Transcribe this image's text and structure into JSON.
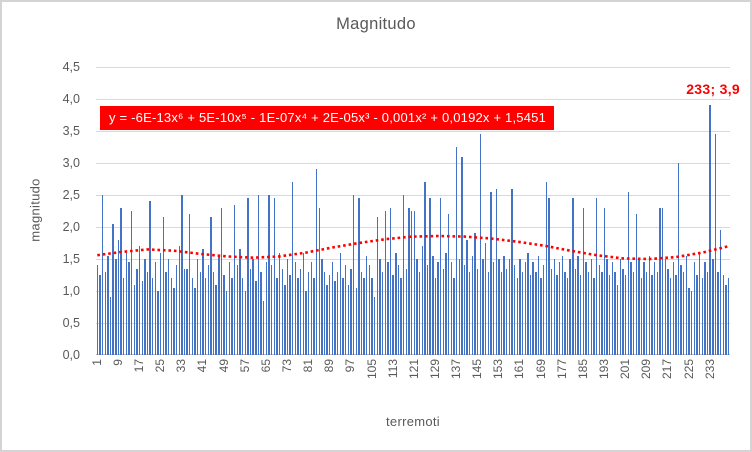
{
  "window": {
    "background": "#ffffff",
    "border_color": "#d5d3d3"
  },
  "colors": {
    "bar": "#4472C4",
    "trendline": "#ff0000",
    "gridline": "#d9d9d9",
    "axis_line": "#bfbfbf",
    "text": "#595959",
    "equation_bg": "#ff0000",
    "equation_fg": "#ffffff",
    "annotation": "#ff0000"
  },
  "chart_data": {
    "type": "bar",
    "title": "Magnitudo",
    "xlabel": "terremoti",
    "ylabel": "magnitudo",
    "ylim": [
      0,
      4.5
    ],
    "grid": true,
    "bar_color": "#4472C4",
    "y_ticks": [
      "4,5",
      "4,0",
      "3,5",
      "3,0",
      "2,5",
      "2,0",
      "1,5",
      "1,0",
      "0,5",
      "0,0"
    ],
    "x_tick_labels": [
      "1",
      "9",
      "17",
      "25",
      "33",
      "41",
      "49",
      "57",
      "65",
      "73",
      "81",
      "89",
      "97",
      "105",
      "113",
      "121",
      "129",
      "137",
      "145",
      "153",
      "161",
      "169",
      "177",
      "185",
      "193",
      "201",
      "209",
      "217",
      "225",
      "233"
    ],
    "x_tick_step": 8,
    "values": [
      1.4,
      1.25,
      2.5,
      1.3,
      1.55,
      0.9,
      2.05,
      1.5,
      1.8,
      2.3,
      1.2,
      1.6,
      1.45,
      2.25,
      1.1,
      1.35,
      1.7,
      1.15,
      1.5,
      1.3,
      2.4,
      1.2,
      1.45,
      1.0,
      1.6,
      2.15,
      1.3,
      1.5,
      1.2,
      1.05,
      1.4,
      1.7,
      2.5,
      1.35,
      1.35,
      2.2,
      1.2,
      1.05,
      1.5,
      1.3,
      1.65,
      1.2,
      1.4,
      2.15,
      1.3,
      1.1,
      1.55,
      2.3,
      1.25,
      1.0,
      1.45,
      1.2,
      2.35,
      1.4,
      1.65,
      1.2,
      1.0,
      2.45,
      1.35,
      1.5,
      1.15,
      2.5,
      1.3,
      0.85,
      1.45,
      2.5,
      1.4,
      2.45,
      1.2,
      1.6,
      1.35,
      1.1,
      1.5,
      1.25,
      2.7,
      1.45,
      1.2,
      1.35,
      1.6,
      1.0,
      1.3,
      1.45,
      1.2,
      2.9,
      2.3,
      1.5,
      1.3,
      1.1,
      1.25,
      1.45,
      1.15,
      1.3,
      1.6,
      1.2,
      1.4,
      1.1,
      1.35,
      2.5,
      1.05,
      2.45,
      1.3,
      1.2,
      1.55,
      1.4,
      1.2,
      0.9,
      2.15,
      1.5,
      1.3,
      2.25,
      1.45,
      2.3,
      1.25,
      1.6,
      1.4,
      1.2,
      2.5,
      1.35,
      2.3,
      2.25,
      2.25,
      1.5,
      1.3,
      1.7,
      2.7,
      1.4,
      2.45,
      1.55,
      1.2,
      1.45,
      2.45,
      1.35,
      1.6,
      2.2,
      1.45,
      1.2,
      3.25,
      1.5,
      3.1,
      1.4,
      1.8,
      1.3,
      1.55,
      1.9,
      1.35,
      3.45,
      1.5,
      1.75,
      1.3,
      2.55,
      1.45,
      2.6,
      1.5,
      1.3,
      1.55,
      1.35,
      1.5,
      2.6,
      1.4,
      1.2,
      1.5,
      1.3,
      1.45,
      1.6,
      1.25,
      1.45,
      1.3,
      1.55,
      1.2,
      1.4,
      2.7,
      2.45,
      1.35,
      1.5,
      1.25,
      1.45,
      1.55,
      1.3,
      1.2,
      1.5,
      2.45,
      1.35,
      1.55,
      1.25,
      2.3,
      1.45,
      1.3,
      1.5,
      1.2,
      2.45,
      1.4,
      1.3,
      2.3,
      1.5,
      1.25,
      1.45,
      1.3,
      1.1,
      1.5,
      1.35,
      1.25,
      2.55,
      1.45,
      1.3,
      2.2,
      1.5,
      1.2,
      1.45,
      1.3,
      1.55,
      1.25,
      1.45,
      1.3,
      2.3,
      2.3,
      1.5,
      1.35,
      1.2,
      1.45,
      1.25,
      3.0,
      1.4,
      1.3,
      1.55,
      1.05,
      1.0,
      1.45,
      1.25,
      1.6,
      1.2,
      1.45,
      1.3,
      3.9,
      1.5,
      3.45,
      1.3,
      1.95,
      1.25,
      1.1,
      1.2
    ],
    "trendline": {
      "type": "polynomial",
      "order": 6,
      "equation": "y = -6E-13x⁶ + 5E-10x⁵ - 1E-07x⁴ + 2E-05x³ - 0,001x² + 0,0192x + 1,5451",
      "color": "#ff0000",
      "style": "dotted",
      "points": [
        [
          1,
          1.56
        ],
        [
          10,
          1.61
        ],
        [
          20,
          1.65
        ],
        [
          30,
          1.63
        ],
        [
          40,
          1.58
        ],
        [
          50,
          1.54
        ],
        [
          60,
          1.52
        ],
        [
          70,
          1.54
        ],
        [
          80,
          1.6
        ],
        [
          90,
          1.68
        ],
        [
          100,
          1.75
        ],
        [
          110,
          1.81
        ],
        [
          120,
          1.85
        ],
        [
          130,
          1.86
        ],
        [
          140,
          1.85
        ],
        [
          150,
          1.82
        ],
        [
          160,
          1.77
        ],
        [
          170,
          1.71
        ],
        [
          180,
          1.63
        ],
        [
          190,
          1.56
        ],
        [
          200,
          1.51
        ],
        [
          210,
          1.5
        ],
        [
          220,
          1.53
        ],
        [
          230,
          1.6
        ],
        [
          240,
          1.7
        ]
      ]
    },
    "annotation": {
      "label": "233; 3,9",
      "x": 233,
      "y": 3.9
    },
    "legend": "none"
  }
}
